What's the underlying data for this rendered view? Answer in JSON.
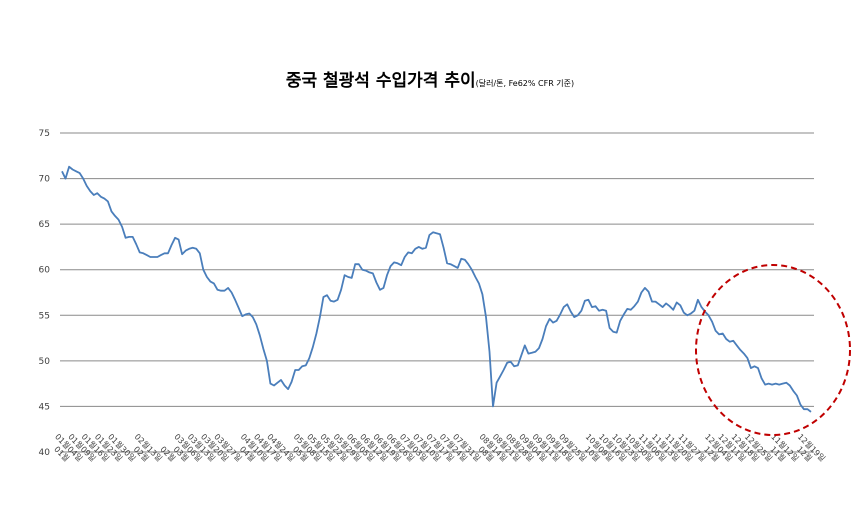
{
  "chart_data": {
    "type": "line",
    "title": "중국 철광석 수입가격 추이",
    "subtitle": "(달러/톤, Fe62% CFR 기준)",
    "xlabel": "",
    "ylabel": "",
    "ylim": [
      40,
      75
    ],
    "yticks": [
      "40",
      "45",
      "50",
      "55",
      "60",
      "65",
      "70",
      "75"
    ],
    "grid": true,
    "legend": "none",
    "series": [
      {
        "color": "#4a7ebb",
        "values": [
          70.8,
          70.0,
          71.3,
          71.0,
          70.8,
          70.6,
          70.0,
          69.2,
          68.6,
          68.2,
          68.4,
          68.0,
          67.8,
          67.5,
          66.4,
          65.9,
          65.5,
          64.7,
          63.5,
          63.6,
          63.6,
          62.8,
          61.9,
          61.8,
          61.6,
          61.4,
          61.4,
          61.4,
          61.6,
          61.8,
          61.8,
          62.7,
          63.5,
          63.3,
          61.7,
          62.1,
          62.3,
          62.4,
          62.3,
          61.8,
          60.0,
          59.2,
          58.7,
          58.5,
          57.8,
          57.7,
          57.7,
          58.0,
          57.5,
          56.7,
          55.8,
          54.9,
          55.1,
          55.2,
          54.8,
          54.0,
          52.8,
          51.3,
          50.0,
          47.5,
          47.3,
          47.6,
          47.9,
          47.3,
          46.9,
          47.7,
          49.0,
          49.0,
          49.4,
          49.5,
          50.3,
          51.5,
          53.0,
          54.8,
          57.0,
          57.2,
          56.6,
          56.5,
          56.7,
          57.8,
          59.4,
          59.2,
          59.1,
          60.6,
          60.6,
          60.0,
          59.9,
          59.7,
          59.6,
          58.6,
          57.8,
          58.0,
          59.4,
          60.4,
          60.8,
          60.7,
          60.5,
          61.4,
          61.9,
          61.8,
          62.3,
          62.5,
          62.3,
          62.4,
          63.8,
          64.1,
          64.0,
          63.9,
          62.4,
          60.7,
          60.6,
          60.4,
          60.2,
          61.2,
          61.1,
          60.6,
          60.0,
          59.2,
          58.5,
          57.3,
          54.8,
          51.0,
          45.0,
          47.6,
          48.3,
          49.0,
          49.8,
          49.9,
          49.4,
          49.5,
          50.6,
          51.7,
          50.8,
          50.9,
          51.0,
          51.4,
          52.4,
          53.8,
          54.6,
          54.2,
          54.4,
          55.1,
          55.9,
          56.2,
          55.4,
          54.8,
          55.0,
          55.5,
          56.6,
          56.7,
          55.9,
          56.0,
          55.5,
          55.6,
          55.5,
          53.6,
          53.2,
          53.1,
          54.4,
          55.1,
          55.7,
          55.6,
          56.0,
          56.5,
          57.5,
          58.0,
          57.6,
          56.5,
          56.5,
          56.2,
          55.9,
          56.3,
          56.0,
          55.6,
          56.4,
          56.1,
          55.3,
          55.0,
          55.2,
          55.5,
          56.7,
          55.9,
          55.4,
          55.0,
          54.3,
          53.3,
          52.9,
          53.0,
          52.4,
          52.1,
          52.2,
          51.7,
          51.2,
          50.8,
          50.3,
          49.2,
          49.4,
          49.2,
          48.1,
          47.4,
          47.5,
          47.4,
          47.5,
          47.4,
          47.5,
          47.6,
          47.3,
          46.7,
          46.2,
          45.2,
          44.7,
          44.7,
          44.4
        ]
      }
    ],
    "x_tick_labels": [
      "01월",
      "01월04일",
      "01월09일",
      "01월16일",
      "01월23일",
      "01월30일",
      "02월",
      "02월13일",
      "02월",
      "03월",
      "03월06일",
      "03월13일",
      "03월20일",
      "03월27일",
      "04월",
      "04월10일",
      "04월17일",
      "04월24일",
      "05월",
      "05월08일",
      "05월15일",
      "05월22일",
      "05월29일",
      "06월05일",
      "06월12일",
      "06월19일",
      "06월26일",
      "07월03일",
      "07월10일",
      "07월17일",
      "07월24일",
      "07월31일",
      "08월",
      "08월14일",
      "08월21일",
      "08월28일",
      "09월04일",
      "09월11일",
      "09월18일",
      "09월25일",
      "10월",
      "10월09일",
      "10월16일",
      "10월23일",
      "10월30일",
      "11월06일",
      "11월13일",
      "11월20일",
      "11월27일",
      "12월",
      "12월04일",
      "12월11일",
      "12월18일",
      "12월25일",
      "11월",
      "11월12일",
      "12월",
      "12월19일"
    ]
  },
  "annotation": {
    "shape": "dashed-ellipse",
    "color": "#c00000"
  }
}
